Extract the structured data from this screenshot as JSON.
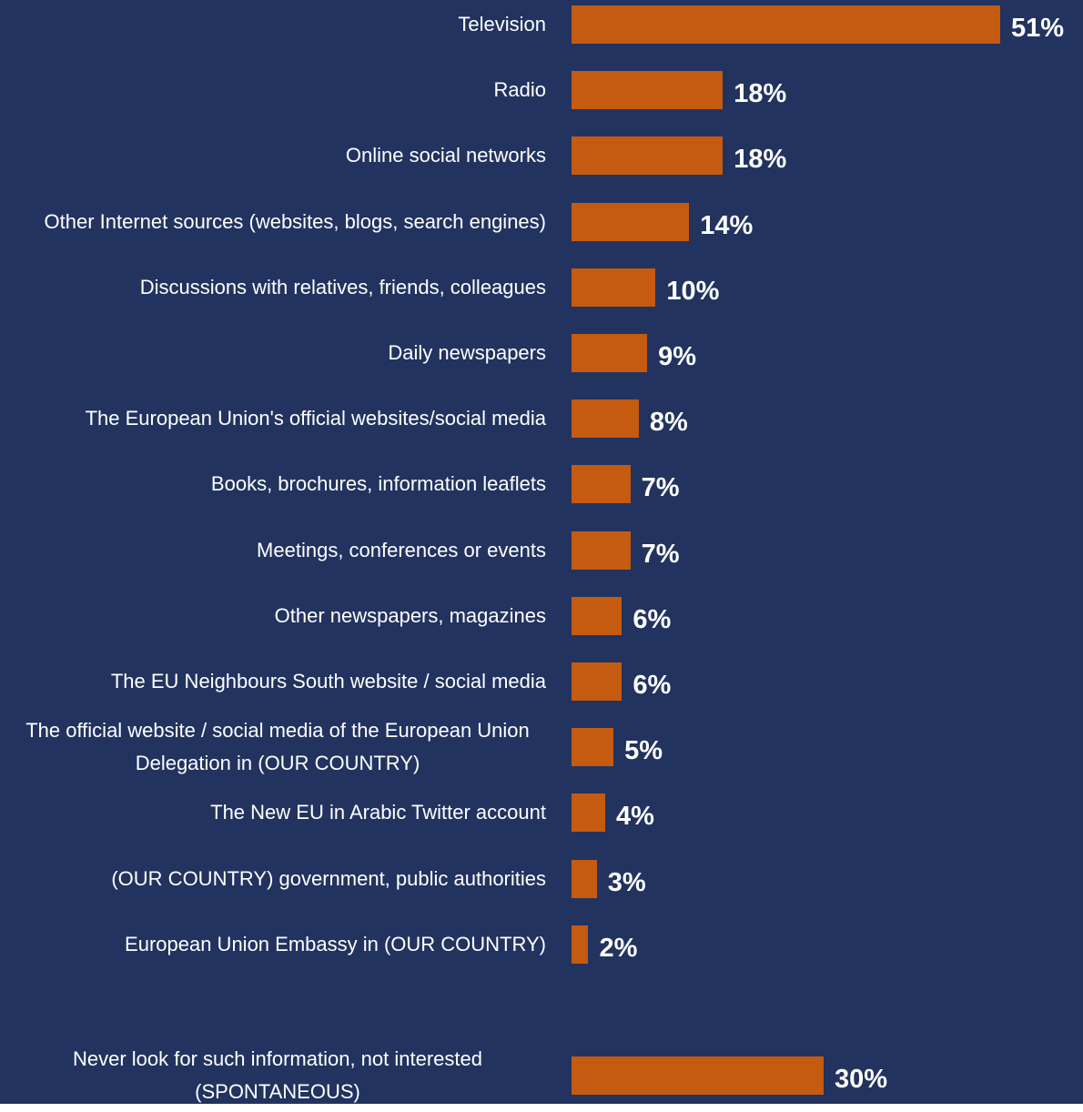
{
  "chart_data": {
    "type": "bar",
    "orientation": "horizontal",
    "color": "#c55a11",
    "background": "#22335f",
    "categories": [
      "Television",
      "Radio",
      "Online social networks",
      "Other Internet sources (websites, blogs, search engines)",
      "Discussions with relatives, friends, colleagues",
      "Daily newspapers",
      "The European Union's official websites/social media",
      "Books, brochures, information leaflets",
      "Meetings, conferences or events",
      "Other newspapers, magazines",
      "The EU Neighbours South website / social media",
      "The official website / social media of the European Union Delegation in (OUR COUNTRY)",
      "The New EU in Arabic Twitter account",
      "(OUR COUNTRY) government, public authorities",
      "European Union Embassy in (OUR COUNTRY)",
      null,
      "Never look for such information, not interested (SPONTANEOUS)"
    ],
    "values": [
      51,
      18,
      18,
      14,
      10,
      9,
      8,
      7,
      7,
      6,
      6,
      5,
      4,
      3,
      2,
      null,
      30
    ],
    "value_labels": [
      "51%",
      "18%",
      "18%",
      "14%",
      "10%",
      "9%",
      "8%",
      "7%",
      "7%",
      "6%",
      "6%",
      "5%",
      "4%",
      "3%",
      "2%",
      null,
      "30%"
    ]
  }
}
